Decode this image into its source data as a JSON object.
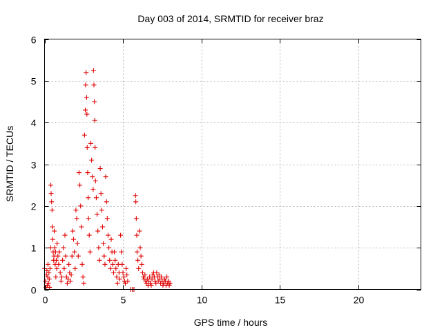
{
  "chart_data": {
    "type": "scatter",
    "title": "Day 003 of 2014, SRMTID for receiver braz",
    "xlabel": "GPS time / hours",
    "ylabel": "SRMTID / TECUs",
    "xlim": [
      0,
      24
    ],
    "ylim": [
      0,
      6
    ],
    "xticks": [
      0,
      5,
      10,
      15,
      20
    ],
    "yticks": [
      0,
      1,
      2,
      3,
      4,
      5,
      6
    ],
    "grid": true,
    "marker": "plus",
    "color": "#e00000",
    "series": [
      {
        "name": "SRMTID",
        "points": [
          [
            0.0,
            0.5
          ],
          [
            0.05,
            0.2
          ],
          [
            0.1,
            0.05
          ],
          [
            0.12,
            0.35
          ],
          [
            0.15,
            0.45
          ],
          [
            0.18,
            0.1
          ],
          [
            0.2,
            0.3
          ],
          [
            0.22,
            0.6
          ],
          [
            0.25,
            0.15
          ],
          [
            0.28,
            0.4
          ],
          [
            0.3,
            0.25
          ],
          [
            0.32,
            0.05
          ],
          [
            0.35,
            0.5
          ],
          [
            0.38,
            1.0
          ],
          [
            0.4,
            2.5
          ],
          [
            0.42,
            2.3
          ],
          [
            0.45,
            2.1
          ],
          [
            0.48,
            1.9
          ],
          [
            0.5,
            1.5
          ],
          [
            0.52,
            1.2
          ],
          [
            0.55,
            0.9
          ],
          [
            0.58,
            0.7
          ],
          [
            0.6,
            0.8
          ],
          [
            0.62,
            1.4
          ],
          [
            0.65,
            1.0
          ],
          [
            0.68,
            0.6
          ],
          [
            0.7,
            0.9
          ],
          [
            0.72,
            0.3
          ],
          [
            0.75,
            0.7
          ],
          [
            0.78,
            0.5
          ],
          [
            0.8,
            1.1
          ],
          [
            0.85,
            0.8
          ],
          [
            0.9,
            0.6
          ],
          [
            0.95,
            0.9
          ],
          [
            1.0,
            0.4
          ],
          [
            1.05,
            0.2
          ],
          [
            1.1,
            0.3
          ],
          [
            1.15,
            0.7
          ],
          [
            1.2,
            1.0
          ],
          [
            1.25,
            0.5
          ],
          [
            1.3,
            1.3
          ],
          [
            1.35,
            0.8
          ],
          [
            1.4,
            0.3
          ],
          [
            1.45,
            0.15
          ],
          [
            1.5,
            0.25
          ],
          [
            1.55,
            0.6
          ],
          [
            1.6,
            0.4
          ],
          [
            1.65,
            0.2
          ],
          [
            1.7,
            0.35
          ],
          [
            1.75,
            0.8
          ],
          [
            1.8,
            1.4
          ],
          [
            1.85,
            1.2
          ],
          [
            1.9,
            0.9
          ],
          [
            1.95,
            0.5
          ],
          [
            2.0,
            1.9
          ],
          [
            2.05,
            1.7
          ],
          [
            2.1,
            1.1
          ],
          [
            2.15,
            0.8
          ],
          [
            2.2,
            2.8
          ],
          [
            2.25,
            2.5
          ],
          [
            2.3,
            2.0
          ],
          [
            2.35,
            1.5
          ],
          [
            2.4,
            0.6
          ],
          [
            2.45,
            0.3
          ],
          [
            2.5,
            0.15
          ],
          [
            2.55,
            3.7
          ],
          [
            2.6,
            4.3
          ],
          [
            2.62,
            4.9
          ],
          [
            2.65,
            5.2
          ],
          [
            2.68,
            4.6
          ],
          [
            2.7,
            4.2
          ],
          [
            2.72,
            3.4
          ],
          [
            2.75,
            2.8
          ],
          [
            2.78,
            2.2
          ],
          [
            2.8,
            1.7
          ],
          [
            2.85,
            1.3
          ],
          [
            2.9,
            0.9
          ],
          [
            2.95,
            3.5
          ],
          [
            3.0,
            3.1
          ],
          [
            3.05,
            2.7
          ],
          [
            3.1,
            2.4
          ],
          [
            3.12,
            5.25
          ],
          [
            3.15,
            4.9
          ],
          [
            3.18,
            4.5
          ],
          [
            3.2,
            4.05
          ],
          [
            3.22,
            3.4
          ],
          [
            3.25,
            2.6
          ],
          [
            3.3,
            2.2
          ],
          [
            3.35,
            1.8
          ],
          [
            3.4,
            1.4
          ],
          [
            3.45,
            1.0
          ],
          [
            3.5,
            0.7
          ],
          [
            3.55,
            2.9
          ],
          [
            3.6,
            2.3
          ],
          [
            3.65,
            1.9
          ],
          [
            3.7,
            1.5
          ],
          [
            3.75,
            1.1
          ],
          [
            3.8,
            0.8
          ],
          [
            3.85,
            0.6
          ],
          [
            3.9,
            2.7
          ],
          [
            3.95,
            2.1
          ],
          [
            4.0,
            1.7
          ],
          [
            4.05,
            1.3
          ],
          [
            4.1,
            1.0
          ],
          [
            4.15,
            0.7
          ],
          [
            4.2,
            0.5
          ],
          [
            4.25,
            1.2
          ],
          [
            4.3,
            0.9
          ],
          [
            4.35,
            0.6
          ],
          [
            4.4,
            0.4
          ],
          [
            4.45,
            0.9
          ],
          [
            4.5,
            0.7
          ],
          [
            4.55,
            0.5
          ],
          [
            4.6,
            0.3
          ],
          [
            4.65,
            0.15
          ],
          [
            4.7,
            0.6
          ],
          [
            4.75,
            0.4
          ],
          [
            4.8,
            0.25
          ],
          [
            4.85,
            1.3
          ],
          [
            4.9,
            0.9
          ],
          [
            4.95,
            0.6
          ],
          [
            5.0,
            0.4
          ],
          [
            5.05,
            0.3
          ],
          [
            5.1,
            0.2
          ],
          [
            5.15,
            0.15
          ],
          [
            5.2,
            0.5
          ],
          [
            5.25,
            0.35
          ],
          [
            5.3,
            0.2
          ],
          [
            5.5,
            0.0
          ],
          [
            5.6,
            0.0
          ],
          [
            5.7,
            0.0
          ],
          [
            5.8,
            2.25
          ],
          [
            5.82,
            2.1
          ],
          [
            5.85,
            1.7
          ],
          [
            5.88,
            1.3
          ],
          [
            5.9,
            0.9
          ],
          [
            5.95,
            0.7
          ],
          [
            6.0,
            0.5
          ],
          [
            6.05,
            1.4
          ],
          [
            6.1,
            1.0
          ],
          [
            6.15,
            0.8
          ],
          [
            6.2,
            0.6
          ],
          [
            6.25,
            0.4
          ],
          [
            6.3,
            0.3
          ],
          [
            6.35,
            0.25
          ],
          [
            6.4,
            0.35
          ],
          [
            6.45,
            0.2
          ],
          [
            6.5,
            0.15
          ],
          [
            6.55,
            0.25
          ],
          [
            6.6,
            0.1
          ],
          [
            6.65,
            0.2
          ],
          [
            6.7,
            0.3
          ],
          [
            6.75,
            0.15
          ],
          [
            6.8,
            0.1
          ],
          [
            6.85,
            0.25
          ],
          [
            6.9,
            0.35
          ],
          [
            6.95,
            0.4
          ],
          [
            7.0,
            0.3
          ],
          [
            7.05,
            0.2
          ],
          [
            7.1,
            0.15
          ],
          [
            7.15,
            0.4
          ],
          [
            7.2,
            0.3
          ],
          [
            7.25,
            0.2
          ],
          [
            7.3,
            0.35
          ],
          [
            7.35,
            0.25
          ],
          [
            7.4,
            0.15
          ],
          [
            7.45,
            0.3
          ],
          [
            7.5,
            0.2
          ],
          [
            7.55,
            0.1
          ],
          [
            7.6,
            0.15
          ],
          [
            7.65,
            0.25
          ],
          [
            7.7,
            0.2
          ],
          [
            7.75,
            0.1
          ],
          [
            7.8,
            0.3
          ],
          [
            7.85,
            0.15
          ],
          [
            7.9,
            0.2
          ],
          [
            7.95,
            0.1
          ],
          [
            8.0,
            0.15
          ]
        ]
      }
    ]
  }
}
